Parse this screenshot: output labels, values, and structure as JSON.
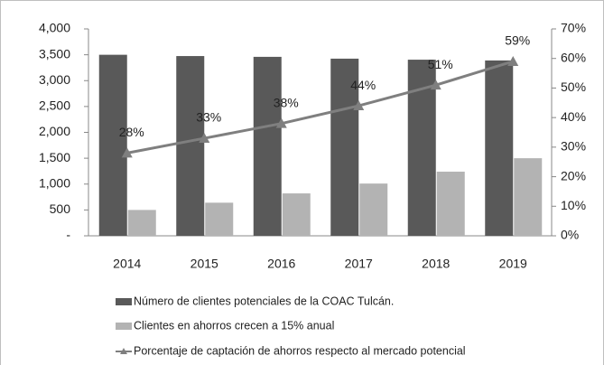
{
  "chart_data": {
    "type": "bar-line",
    "categories": [
      "2014",
      "2015",
      "2016",
      "2017",
      "2018",
      "2019"
    ],
    "series": [
      {
        "name": "Número de clientes potenciales de la COAC Tulcán.",
        "type": "bar",
        "color": "#595959",
        "values": [
          3500,
          3475,
          3460,
          3425,
          3405,
          3390
        ]
      },
      {
        "name": "Clientes en ahorros crecen a 15% anual",
        "type": "bar",
        "color": "#b3b3b3",
        "values": [
          500,
          640,
          820,
          1010,
          1240,
          1500
        ]
      },
      {
        "name": "Porcentaje de captación de ahorros respecto al mercado potencial",
        "type": "line",
        "axis": "y2",
        "color": "#7f7f7f",
        "values": [
          28,
          33,
          38,
          44,
          51,
          59
        ],
        "value_labels": [
          "28%",
          "33%",
          "38%",
          "44%",
          "51%",
          "59%"
        ]
      }
    ],
    "ylim": [
      0,
      4000
    ],
    "yticks": [
      {
        "value": 0,
        "label": "-"
      },
      500,
      {
        "value": 1000,
        "label": "1,000"
      },
      {
        "value": 1500,
        "label": "1,500"
      },
      {
        "value": 2000,
        "label": "2,000"
      },
      {
        "value": 2500,
        "label": "2,500"
      },
      {
        "value": 3000,
        "label": "3,000"
      },
      {
        "value": 3500,
        "label": "3,500"
      },
      {
        "value": 4000,
        "label": "4,000"
      }
    ],
    "y2lim": [
      0,
      70
    ],
    "y2ticks": [
      {
        "value": 0,
        "label": "0%"
      },
      {
        "value": 10,
        "label": "10%"
      },
      {
        "value": 20,
        "label": "20%"
      },
      {
        "value": 30,
        "label": "30%"
      },
      {
        "value": 40,
        "label": "40%"
      },
      {
        "value": 50,
        "label": "50%"
      },
      {
        "value": 60,
        "label": "60%"
      },
      {
        "value": 70,
        "label": "70%"
      }
    ],
    "grid": false
  }
}
